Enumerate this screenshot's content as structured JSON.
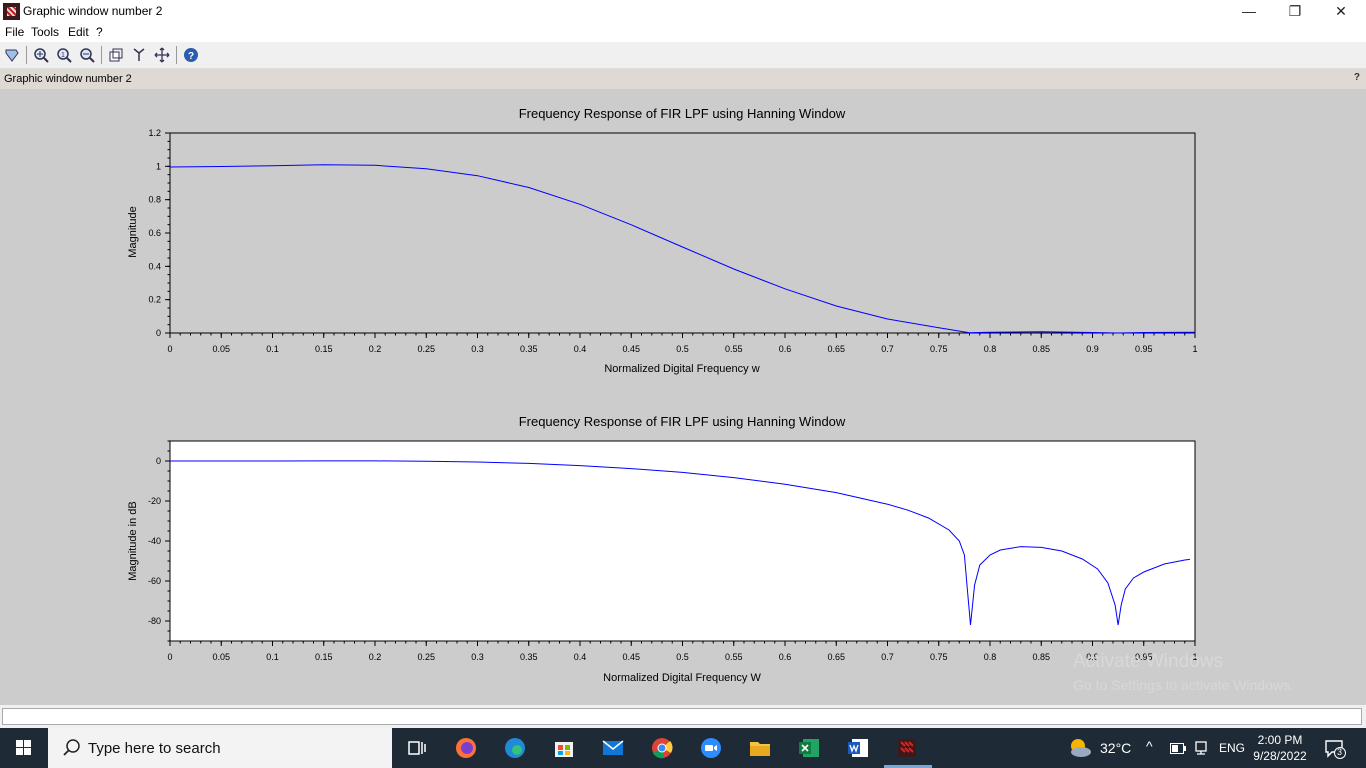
{
  "window": {
    "title": "Graphic window number 2",
    "minimize_glyph": "—",
    "restore_glyph": "❐",
    "close_glyph": "✕"
  },
  "menu": {
    "items": [
      "File",
      "Tools",
      "Edit",
      "?"
    ]
  },
  "toolbar": {
    "icons": [
      "datatip-icon",
      "zoom-in-icon",
      "zoom-original-icon",
      "zoom-out-icon",
      "rotate-icon",
      "axes-icon",
      "pan-icon",
      "help-icon"
    ]
  },
  "infobar": {
    "label": "Graphic window number 2",
    "help": "?"
  },
  "chart_data": [
    {
      "type": "line",
      "title": "Frequency Response of FIR LPF using Hanning Window",
      "xlabel": "Normalized Digital Frequency w",
      "ylabel": "Magnitude",
      "xlim": [
        0,
        1
      ],
      "ylim": [
        0,
        1.2
      ],
      "xticks": [
        "0",
        "0.05",
        "0.1",
        "0.15",
        "0.2",
        "0.25",
        "0.3",
        "0.35",
        "0.4",
        "0.45",
        "0.5",
        "0.55",
        "0.6",
        "0.65",
        "0.7",
        "0.75",
        "0.8",
        "0.85",
        "0.9",
        "0.95",
        "1"
      ],
      "yticks": [
        "0",
        "0.2",
        "0.4",
        "0.6",
        "0.8",
        "1",
        "1.2"
      ],
      "line_color": "#0000ff",
      "background": "#cccccc",
      "x": [
        0,
        0.05,
        0.1,
        0.15,
        0.2,
        0.25,
        0.3,
        0.35,
        0.4,
        0.45,
        0.5,
        0.55,
        0.6,
        0.65,
        0.7,
        0.75,
        0.78,
        0.8,
        0.85,
        0.9,
        0.925,
        0.95,
        1
      ],
      "y": [
        0.996,
        0.999,
        1.004,
        1.009,
        1.006,
        0.986,
        0.944,
        0.873,
        0.772,
        0.649,
        0.516,
        0.384,
        0.265,
        0.162,
        0.084,
        0.032,
        0.001,
        0.004,
        0.007,
        0.003,
        0.0,
        0.003,
        0.004
      ]
    },
    {
      "type": "line",
      "title": "Frequency Response of FIR LPF using Hanning Window",
      "xlabel": "Normalized Digital Frequency W",
      "ylabel": "Magnitude in dB",
      "xlim": [
        0,
        1
      ],
      "ylim": [
        -90,
        10
      ],
      "xticks": [
        "0",
        "0.05",
        "0.1",
        "0.15",
        "0.2",
        "0.25",
        "0.3",
        "0.35",
        "0.4",
        "0.45",
        "0.5",
        "0.55",
        "0.6",
        "0.65",
        "0.7",
        "0.75",
        "0.8",
        "0.85",
        "0.9",
        "0.95",
        "1"
      ],
      "yticks": [
        "0",
        "-20",
        "-40",
        "-60",
        "-80"
      ],
      "line_color": "#0000ff",
      "background": "#ffffff",
      "x": [
        0,
        0.05,
        0.1,
        0.15,
        0.2,
        0.25,
        0.3,
        0.35,
        0.4,
        0.45,
        0.5,
        0.55,
        0.6,
        0.65,
        0.7,
        0.72,
        0.74,
        0.76,
        0.77,
        0.775,
        0.778,
        0.781,
        0.785,
        0.79,
        0.8,
        0.81,
        0.83,
        0.85,
        0.87,
        0.89,
        0.905,
        0.915,
        0.922,
        0.925,
        0.928,
        0.932,
        0.94,
        0.95,
        0.97,
        0.99,
        0.995
      ],
      "y": [
        0,
        0,
        0.01,
        0.04,
        0.05,
        -0.1,
        -0.5,
        -1.2,
        -2.3,
        -3.8,
        -5.7,
        -8.3,
        -11.6,
        -15.8,
        -21.6,
        -24.6,
        -28.5,
        -34.5,
        -40,
        -47,
        -65,
        -82,
        -62,
        -52,
        -47,
        -44.5,
        -42.8,
        -43.2,
        -45,
        -49,
        -54,
        -61,
        -72,
        -82,
        -72,
        -64,
        -58.5,
        -55.5,
        -51.5,
        -49.5,
        -49.2
      ]
    }
  ],
  "watermark": {
    "line1": "Activate Windows",
    "line2": "Go to Settings to activate Windows."
  },
  "taskbar": {
    "search_placeholder": "Type here to search",
    "weather": "32°C",
    "language": "ENG",
    "time": "2:00 PM",
    "date": "9/28/2022",
    "notifications": "3",
    "apps": [
      "task-view-icon",
      "firefox-icon",
      "edge-icon",
      "store-icon",
      "mail-icon",
      "chrome-icon",
      "zoom-app-icon",
      "file-explorer-icon",
      "excel-icon",
      "word-icon",
      "scilab-icon"
    ]
  }
}
